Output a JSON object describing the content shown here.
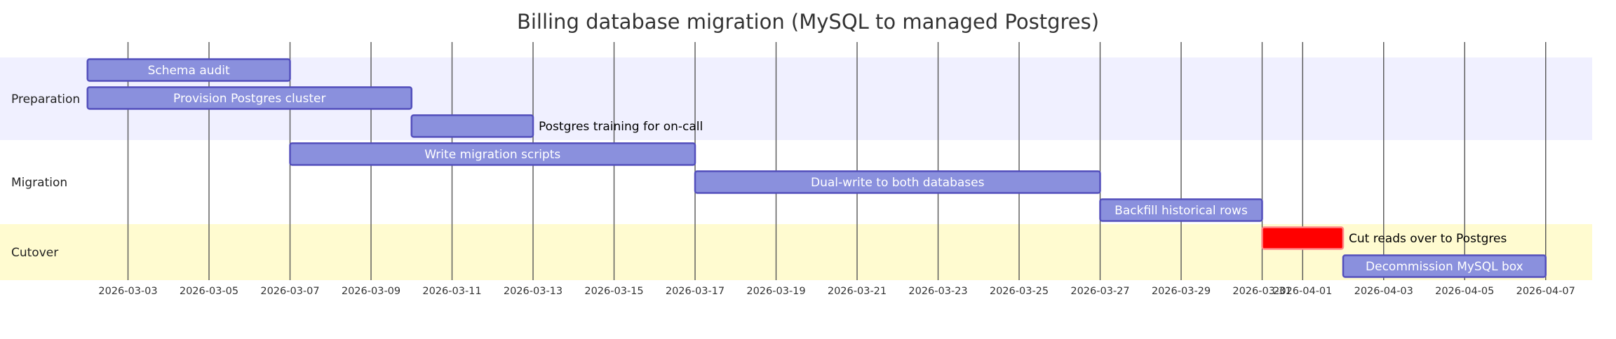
{
  "chart_data": {
    "type": "gantt",
    "title": "Billing database migration (MySQL to managed Postgres)",
    "x_axis": {
      "type": "date",
      "range": [
        "2026-03-01",
        "2026-04-08"
      ],
      "tick_labels": [
        "2026-03-03",
        "2026-03-05",
        "2026-03-07",
        "2026-03-09",
        "2026-03-11",
        "2026-03-13",
        "2026-03-15",
        "2026-03-17",
        "2026-03-19",
        "2026-03-21",
        "2026-03-23",
        "2026-03-25",
        "2026-03-27",
        "2026-03-29",
        "2026-03-31",
        "2026-04-01",
        "2026-04-03",
        "2026-04-05",
        "2026-04-07"
      ]
    },
    "grid": true,
    "sections": [
      {
        "name": "Preparation",
        "color": "#f0f0ff",
        "tasks": [
          {
            "label": "Schema audit",
            "start": "2026-03-02",
            "end": "2026-03-07",
            "label_position": "inside"
          },
          {
            "label": "Provision Postgres cluster",
            "start": "2026-03-02",
            "end": "2026-03-10",
            "label_position": "inside"
          },
          {
            "label": "Postgres training for on-call",
            "start": "2026-03-10",
            "end": "2026-03-13",
            "label_position": "outside"
          }
        ]
      },
      {
        "name": "Migration",
        "color": "#ffffff",
        "tasks": [
          {
            "label": "Write migration scripts",
            "start": "2026-03-07",
            "end": "2026-03-17",
            "label_position": "inside"
          },
          {
            "label": "Dual-write to both databases",
            "start": "2026-03-17",
            "end": "2026-03-27",
            "label_position": "inside"
          },
          {
            "label": "Backfill historical rows",
            "start": "2026-03-27",
            "end": "2026-03-31",
            "label_position": "inside"
          }
        ]
      },
      {
        "name": "Cutover",
        "color": "#fffbd0",
        "tasks": [
          {
            "label": "Cut reads over to Postgres",
            "start": "2026-03-31",
            "end": "2026-04-02",
            "label_position": "outside",
            "critical": true
          },
          {
            "label": "Decommission MySQL box",
            "start": "2026-04-02",
            "end": "2026-04-07",
            "label_position": "inside"
          }
        ]
      }
    ],
    "colors": {
      "task_fill": "#8a90dd",
      "task_stroke": "#534fbc",
      "critical_fill": "#ff0000",
      "critical_stroke": "#ff8888",
      "grid": "#555555",
      "text": "#333333"
    }
  }
}
